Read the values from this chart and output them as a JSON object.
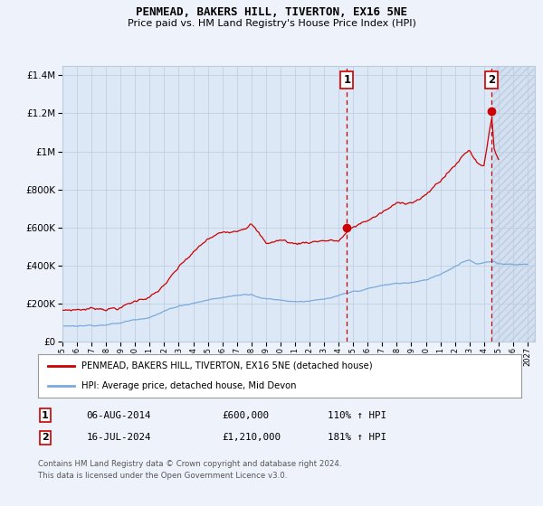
{
  "title": "PENMEAD, BAKERS HILL, TIVERTON, EX16 5NE",
  "subtitle": "Price paid vs. HM Land Registry's House Price Index (HPI)",
  "legend_label_red": "PENMEAD, BAKERS HILL, TIVERTON, EX16 5NE (detached house)",
  "legend_label_blue": "HPI: Average price, detached house, Mid Devon",
  "annotation1_label": "1",
  "annotation1_date": "06-AUG-2014",
  "annotation1_price": "£600,000",
  "annotation1_hpi": "110% ↑ HPI",
  "annotation1_year": 2014.58,
  "annotation1_value": 600000,
  "annotation2_label": "2",
  "annotation2_date": "16-JUL-2024",
  "annotation2_price": "£1,210,000",
  "annotation2_hpi": "181% ↑ HPI",
  "annotation2_year": 2024.54,
  "annotation2_value": 1210000,
  "footer": "Contains HM Land Registry data © Crown copyright and database right 2024.\nThis data is licensed under the Open Government Licence v3.0.",
  "ylim": [
    0,
    1450000
  ],
  "yticks": [
    0,
    200000,
    400000,
    600000,
    800000,
    1000000,
    1200000,
    1400000
  ],
  "xlim_start": 1995.0,
  "xlim_end": 2027.5,
  "background_color": "#eef2fa",
  "plot_bg_color": "#dce8f5",
  "hatch_color": "#c8d8ee",
  "red_color": "#cc0000",
  "blue_color": "#7aaadd",
  "grid_color": "#bbccdd",
  "legend_border_color": "#999999"
}
